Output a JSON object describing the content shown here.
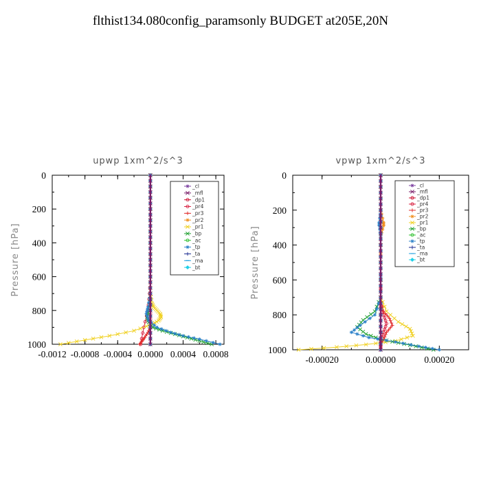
{
  "title": "flthist134.080config_paramsonly  BUDGET at205E,20N",
  "chart_data": [
    {
      "type": "line",
      "title": "upwp   1xm^2/s^3",
      "ylabel": "Pressure [hPa]",
      "xlim": [
        -0.0012,
        0.0009
      ],
      "ylim": [
        1000,
        0
      ],
      "xticks": [
        -0.0012,
        -0.0008,
        -0.0004,
        0.0,
        0.0004,
        0.0008
      ],
      "xtick_labels": [
        "-0.0012",
        "-0.0008",
        "-0.0004",
        "0.0000",
        "0.0004",
        "0.0008"
      ],
      "yticks": [
        0,
        200,
        400,
        600,
        800,
        1000
      ],
      "legend_position": "top-right",
      "series": [
        {
          "name": "_cl",
          "color": "#7b3fa0",
          "marker": "star",
          "x": [
            0,
            0,
            0,
            0,
            0,
            0,
            0,
            0,
            0,
            0,
            0
          ],
          "y": [
            0,
            100,
            200,
            300,
            400,
            500,
            600,
            700,
            800,
            900,
            1000
          ]
        },
        {
          "name": "_mfl",
          "color": "#7a1f6a",
          "marker": "cross",
          "x": [
            0,
            0,
            0,
            0,
            0,
            0,
            0,
            0,
            0,
            0,
            0
          ],
          "y": [
            0,
            100,
            200,
            300,
            400,
            500,
            600,
            700,
            800,
            900,
            1000
          ]
        },
        {
          "name": "_dp1",
          "color": "#cc1030",
          "marker": "circle",
          "x": [
            0,
            0,
            0,
            0,
            0,
            0,
            0,
            0,
            0,
            0,
            0
          ],
          "y": [
            0,
            100,
            200,
            300,
            400,
            500,
            600,
            700,
            800,
            900,
            1000
          ]
        },
        {
          "name": "_pr4",
          "color": "#d82040",
          "marker": "circle",
          "x": [
            0,
            0,
            0,
            0,
            0,
            0,
            0,
            -1e-05,
            -3e-05,
            -8e-05,
            -0.00012
          ],
          "y": [
            0,
            100,
            200,
            300,
            400,
            500,
            600,
            700,
            800,
            900,
            1000
          ]
        },
        {
          "name": "_pr3",
          "color": "#e02828",
          "marker": "plus",
          "x": [
            0,
            0,
            0,
            0,
            0,
            0,
            0,
            0,
            -3e-05,
            -7e-05,
            -0.0001,
            -0.00013
          ],
          "y": [
            0,
            200,
            400,
            600,
            700,
            800,
            850,
            900,
            930,
            960,
            980,
            1000
          ]
        },
        {
          "name": "_pr2",
          "color": "#f09020",
          "marker": "star",
          "x": [
            0,
            0,
            0,
            0,
            0,
            0,
            0,
            0,
            0,
            0,
            0
          ],
          "y": [
            0,
            100,
            200,
            300,
            400,
            500,
            600,
            700,
            800,
            900,
            1000
          ]
        },
        {
          "name": "_pr1",
          "color": "#f0d020",
          "marker": "cross",
          "x": [
            0,
            0,
            0,
            0,
            0,
            2e-05,
            4e-05,
            8e-05,
            0.00012,
            0.00013,
            0.0001,
            3e-05,
            -0.0002,
            -0.0005,
            -0.0008,
            -0.0011
          ],
          "y": [
            0,
            200,
            400,
            600,
            700,
            760,
            780,
            800,
            820,
            840,
            860,
            880,
            920,
            950,
            975,
            1000
          ]
        },
        {
          "name": "_bp",
          "color": "#20a030",
          "marker": "cross",
          "x": [
            0,
            0,
            0,
            0,
            -2e-05,
            -4e-05,
            -2e-05,
            3e-05,
            0.00015,
            0.0003,
            0.00045,
            0.0006,
            0.00075
          ],
          "y": [
            0,
            200,
            400,
            700,
            800,
            840,
            870,
            900,
            920,
            940,
            960,
            980,
            1000
          ]
        },
        {
          "name": "_ac",
          "color": "#30c030",
          "marker": "circle",
          "x": [
            0,
            0,
            0,
            0,
            0,
            0,
            0,
            0,
            0,
            0,
            0
          ],
          "y": [
            0,
            100,
            200,
            300,
            400,
            500,
            600,
            700,
            800,
            900,
            1000
          ]
        },
        {
          "name": "_tp",
          "color": "#2a80c8",
          "marker": "star",
          "x": [
            0,
            0,
            0,
            0,
            -3e-05,
            -5e-05,
            -2e-05,
            8e-05,
            0.00025,
            0.0004,
            0.0006,
            0.00085
          ],
          "y": [
            0,
            200,
            400,
            700,
            780,
            820,
            860,
            900,
            930,
            950,
            970,
            1000
          ]
        },
        {
          "name": "_ta",
          "color": "#1a2a90",
          "marker": "plus",
          "x": [
            0,
            0,
            0,
            0,
            0,
            0,
            0,
            0,
            0,
            0,
            0
          ],
          "y": [
            0,
            100,
            200,
            300,
            400,
            500,
            600,
            700,
            800,
            900,
            1000
          ]
        },
        {
          "name": "_ma",
          "color": "#20a0e0",
          "marker": "dash",
          "x": [
            0,
            0,
            0,
            0,
            0,
            0,
            0,
            0,
            0,
            0,
            0
          ],
          "y": [
            0,
            100,
            200,
            300,
            400,
            500,
            600,
            700,
            800,
            900,
            1000
          ]
        },
        {
          "name": "_bt",
          "color": "#20d0e8",
          "marker": "diamond",
          "x": [
            0,
            0,
            0,
            0,
            0,
            0,
            0,
            0,
            0,
            0,
            0
          ],
          "y": [
            0,
            100,
            200,
            300,
            400,
            500,
            600,
            700,
            800,
            900,
            1000
          ]
        }
      ]
    },
    {
      "type": "line",
      "title": "vpwp   1xm^2/s^3",
      "ylabel": "Pressure [hPa]",
      "xlim": [
        -0.0003,
        0.0003
      ],
      "ylim": [
        1000,
        0
      ],
      "xticks": [
        -0.0002,
        0.0,
        0.0002
      ],
      "xtick_labels": [
        "-0.00020",
        "0.00000",
        "0.00020"
      ],
      "yticks": [
        0,
        200,
        400,
        600,
        800,
        1000
      ],
      "legend_position": "top-right",
      "series": [
        {
          "name": "_cl",
          "color": "#7b3fa0",
          "marker": "star",
          "x": [
            0,
            0,
            0,
            0,
            0,
            0,
            0,
            0,
            0,
            0,
            0
          ],
          "y": [
            0,
            100,
            200,
            300,
            400,
            500,
            600,
            700,
            800,
            900,
            1000
          ]
        },
        {
          "name": "_mfl",
          "color": "#7a1f6a",
          "marker": "cross",
          "x": [
            0,
            0,
            0,
            0,
            0,
            0,
            0,
            0,
            0,
            0,
            0
          ],
          "y": [
            0,
            100,
            200,
            300,
            400,
            500,
            600,
            700,
            800,
            900,
            1000
          ]
        },
        {
          "name": "_dp1",
          "color": "#cc1030",
          "marker": "circle",
          "x": [
            0,
            0,
            0,
            0,
            0,
            0,
            0,
            0,
            0,
            0,
            0
          ],
          "y": [
            0,
            100,
            200,
            300,
            400,
            500,
            600,
            700,
            800,
            900,
            1000
          ]
        },
        {
          "name": "_pr4",
          "color": "#d82040",
          "marker": "circle",
          "x": [
            0,
            0,
            0,
            0,
            0,
            1e-05,
            2e-05,
            1e-05,
            0,
            0,
            0
          ],
          "y": [
            0,
            200,
            400,
            600,
            750,
            800,
            850,
            900,
            940,
            970,
            1000
          ]
        },
        {
          "name": "_pr3",
          "color": "#e02828",
          "marker": "plus",
          "x": [
            0,
            0,
            0,
            0,
            1e-05,
            3e-05,
            4e-05,
            2e-05,
            1e-05,
            0,
            0
          ],
          "y": [
            0,
            200,
            400,
            700,
            780,
            820,
            860,
            900,
            940,
            970,
            1000
          ]
        },
        {
          "name": "_pr2",
          "color": "#f09020",
          "marker": "star",
          "x": [
            0,
            0,
            1e-05,
            1e-05,
            0,
            0,
            0,
            0,
            0,
            0,
            0
          ],
          "y": [
            0,
            200,
            270,
            290,
            350,
            500,
            600,
            700,
            800,
            900,
            1000
          ]
        },
        {
          "name": "_pr1",
          "color": "#f0d020",
          "marker": "cross",
          "x": [
            0,
            0,
            0,
            0,
            2e-05,
            6e-05,
            0.0001,
            0.00011,
            5e-05,
            -5e-05,
            -0.00015,
            -0.00028
          ],
          "y": [
            0,
            200,
            400,
            700,
            780,
            840,
            880,
            920,
            950,
            970,
            985,
            1000
          ]
        },
        {
          "name": "_bp",
          "color": "#20a030",
          "marker": "cross",
          "x": [
            0,
            0,
            0,
            0,
            -2e-05,
            -6e-05,
            -8e-05,
            -5e-05,
            0,
            6e-05,
            0.00012,
            0.00018
          ],
          "y": [
            0,
            200,
            400,
            700,
            780,
            830,
            870,
            910,
            940,
            960,
            980,
            1000
          ]
        },
        {
          "name": "_ac",
          "color": "#30c030",
          "marker": "circle",
          "x": [
            0,
            0,
            0,
            0,
            0,
            0,
            0,
            0,
            0,
            0,
            0
          ],
          "y": [
            0,
            100,
            200,
            300,
            400,
            500,
            600,
            700,
            800,
            900,
            1000
          ]
        },
        {
          "name": "_tp",
          "color": "#2a80c8",
          "marker": "star",
          "x": [
            0,
            0,
            -5e-06,
            -5e-06,
            0,
            0,
            -2e-05,
            -7e-05,
            -0.0001,
            -4e-05,
            5e-05,
            0.00013,
            0.0002
          ],
          "y": [
            0,
            200,
            270,
            290,
            350,
            700,
            800,
            860,
            900,
            930,
            955,
            980,
            1000
          ]
        },
        {
          "name": "_ta",
          "color": "#1a2a90",
          "marker": "plus",
          "x": [
            0,
            0,
            0,
            0,
            0,
            0,
            0,
            0,
            0,
            0,
            0
          ],
          "y": [
            0,
            100,
            200,
            300,
            400,
            500,
            600,
            700,
            800,
            900,
            1000
          ]
        },
        {
          "name": "_ma",
          "color": "#20a0e0",
          "marker": "dash",
          "x": [
            0,
            0,
            0,
            0,
            0,
            0,
            0,
            0,
            0,
            0,
            0
          ],
          "y": [
            0,
            100,
            200,
            300,
            400,
            500,
            600,
            700,
            800,
            900,
            1000
          ]
        },
        {
          "name": "_bt",
          "color": "#20d0e8",
          "marker": "diamond",
          "x": [
            0,
            0,
            0,
            0,
            0,
            0,
            0,
            0,
            0,
            0,
            0
          ],
          "y": [
            0,
            100,
            200,
            300,
            400,
            500,
            600,
            700,
            800,
            900,
            1000
          ]
        }
      ]
    }
  ]
}
